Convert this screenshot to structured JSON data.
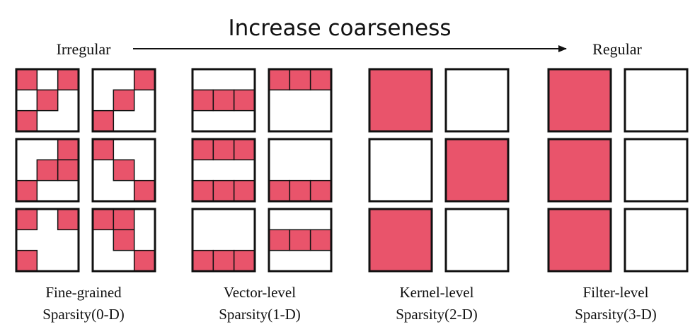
{
  "header": {
    "title": "Increase coarseness",
    "left_label": "Irregular",
    "right_label": "Regular"
  },
  "colors": {
    "filled": "#e9546b",
    "stroke": "#111111",
    "background": "#ffffff"
  },
  "groups": [
    {
      "caption_line1": "Fine-grained",
      "caption_line2": "Sparsity(0-D)",
      "kernels": [
        [
          [
            1,
            0,
            1
          ],
          [
            0,
            1,
            0
          ],
          [
            1,
            0,
            0
          ]
        ],
        [
          [
            0,
            0,
            1
          ],
          [
            0,
            1,
            0
          ],
          [
            1,
            0,
            0
          ]
        ],
        [
          [
            0,
            0,
            1
          ],
          [
            0,
            1,
            1
          ],
          [
            1,
            0,
            0
          ]
        ],
        [
          [
            1,
            0,
            0
          ],
          [
            0,
            1,
            0
          ],
          [
            0,
            0,
            1
          ]
        ],
        [
          [
            1,
            0,
            1
          ],
          [
            0,
            0,
            0
          ],
          [
            1,
            0,
            0
          ]
        ],
        [
          [
            1,
            1,
            0
          ],
          [
            0,
            1,
            0
          ],
          [
            0,
            0,
            1
          ]
        ]
      ]
    },
    {
      "caption_line1": "Vector-level",
      "caption_line2": "Sparsity(1-D)",
      "kernels": [
        [
          [
            0,
            0,
            0
          ],
          [
            1,
            1,
            1
          ],
          [
            0,
            0,
            0
          ]
        ],
        [
          [
            1,
            1,
            1
          ],
          [
            0,
            0,
            0
          ],
          [
            0,
            0,
            0
          ]
        ],
        [
          [
            1,
            1,
            1
          ],
          [
            0,
            0,
            0
          ],
          [
            1,
            1,
            1
          ]
        ],
        [
          [
            0,
            0,
            0
          ],
          [
            0,
            0,
            0
          ],
          [
            1,
            1,
            1
          ]
        ],
        [
          [
            0,
            0,
            0
          ],
          [
            0,
            0,
            0
          ],
          [
            1,
            1,
            1
          ]
        ],
        [
          [
            0,
            0,
            0
          ],
          [
            1,
            1,
            1
          ],
          [
            0,
            0,
            0
          ]
        ]
      ]
    },
    {
      "caption_line1": "Kernel-level",
      "caption_line2": "Sparsity(2-D)",
      "kernels": [
        1,
        0,
        0,
        1,
        1,
        0
      ]
    },
    {
      "caption_line1": "Filter-level",
      "caption_line2": "Sparsity(3-D)",
      "kernels": [
        1,
        0,
        1,
        0,
        1,
        0
      ]
    }
  ]
}
